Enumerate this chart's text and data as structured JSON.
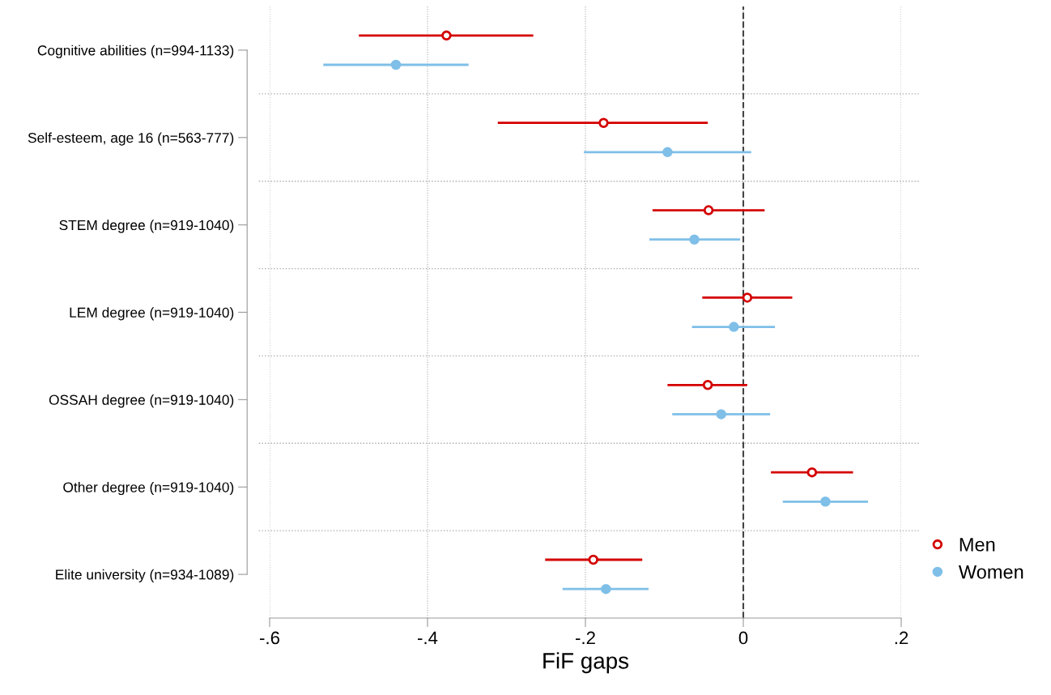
{
  "chart_data": {
    "type": "scatter",
    "orientation": "horizontal",
    "xlabel": "FiF gaps",
    "categories": [
      "Cognitive abilities (n=994-1133)",
      "Self-esteem, age 16 (n=563-777)",
      "STEM degree (n=919-1040)",
      "LEM degree (n=919-1040)",
      "OSSAH degree (n=919-1040)",
      "Other degree (n=919-1040)",
      "Elite university (n=934-1089)"
    ],
    "series": [
      {
        "name": "Men",
        "color": "#d40000",
        "values": [
          -0.376,
          -0.177,
          -0.044,
          0.005,
          -0.045,
          0.087,
          -0.19
        ],
        "errors": [
          [
            -0.487,
            -0.266
          ],
          [
            -0.311,
            -0.045
          ],
          [
            -0.115,
            0.027
          ],
          [
            -0.052,
            0.062
          ],
          [
            -0.096,
            0.005
          ],
          [
            0.035,
            0.139
          ],
          [
            -0.251,
            -0.128
          ]
        ]
      },
      {
        "name": "Women",
        "color": "#7fbfe8",
        "values": [
          -0.44,
          -0.096,
          -0.062,
          -0.012,
          -0.028,
          0.104,
          -0.174
        ],
        "errors": [
          [
            -0.532,
            -0.348
          ],
          [
            -0.202,
            0.01
          ],
          [
            -0.119,
            -0.004
          ],
          [
            -0.065,
            0.04
          ],
          [
            -0.09,
            0.034
          ],
          [
            0.05,
            0.158
          ],
          [
            -0.229,
            -0.12
          ]
        ]
      }
    ],
    "xlim": [
      -0.6,
      0.2
    ],
    "xticks": [
      {
        "value": -0.6,
        "label": "-.6"
      },
      {
        "value": -0.4,
        "label": "-.4"
      },
      {
        "value": -0.2,
        "label": "-.2"
      },
      0,
      {
        "value": 0.2,
        "label": ".2"
      }
    ],
    "ref_lines": [
      {
        "axis": "x",
        "value": 0,
        "color": "#444444",
        "line_style": "dashed"
      }
    ],
    "grid": true,
    "legend": "bottom right",
    "marker": "circle"
  }
}
